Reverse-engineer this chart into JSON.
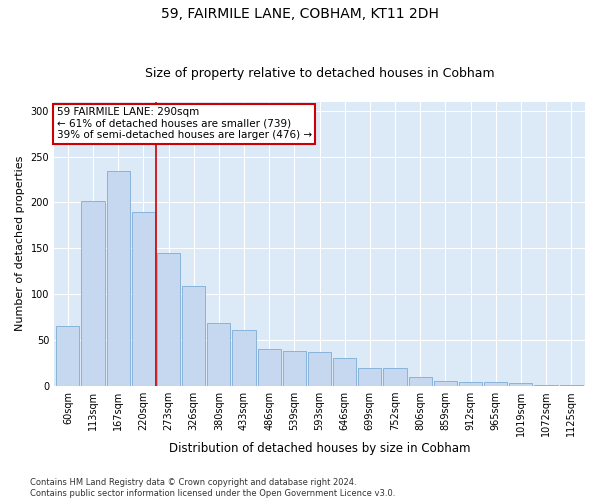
{
  "title1": "59, FAIRMILE LANE, COBHAM, KT11 2DH",
  "title2": "Size of property relative to detached houses in Cobham",
  "xlabel": "Distribution of detached houses by size in Cobham",
  "ylabel": "Number of detached properties",
  "categories": [
    "60sqm",
    "113sqm",
    "167sqm",
    "220sqm",
    "273sqm",
    "326sqm",
    "380sqm",
    "433sqm",
    "486sqm",
    "539sqm",
    "593sqm",
    "646sqm",
    "699sqm",
    "752sqm",
    "806sqm",
    "859sqm",
    "912sqm",
    "965sqm",
    "1019sqm",
    "1072sqm",
    "1125sqm"
  ],
  "values": [
    65,
    202,
    234,
    190,
    145,
    109,
    69,
    61,
    40,
    38,
    37,
    31,
    20,
    20,
    10,
    5,
    4,
    4,
    3,
    1,
    1
  ],
  "bar_color": "#c5d8f0",
  "bar_edge_color": "#7aadd4",
  "vline_index": 4,
  "vline_color": "#cc0000",
  "annotation_text": "59 FAIRMILE LANE: 290sqm\n← 61% of detached houses are smaller (739)\n39% of semi-detached houses are larger (476) →",
  "annotation_box_color": "#ffffff",
  "annotation_box_edge_color": "#cc0000",
  "ylim": [
    0,
    310
  ],
  "yticks": [
    0,
    50,
    100,
    150,
    200,
    250,
    300
  ],
  "footnote": "Contains HM Land Registry data © Crown copyright and database right 2024.\nContains public sector information licensed under the Open Government Licence v3.0.",
  "fig_bg_color": "#ffffff",
  "plot_bg_color": "#dce9f7",
  "title1_fontsize": 10,
  "title2_fontsize": 9,
  "xlabel_fontsize": 8.5,
  "ylabel_fontsize": 8,
  "tick_fontsize": 7,
  "annot_fontsize": 7.5,
  "footnote_fontsize": 6
}
